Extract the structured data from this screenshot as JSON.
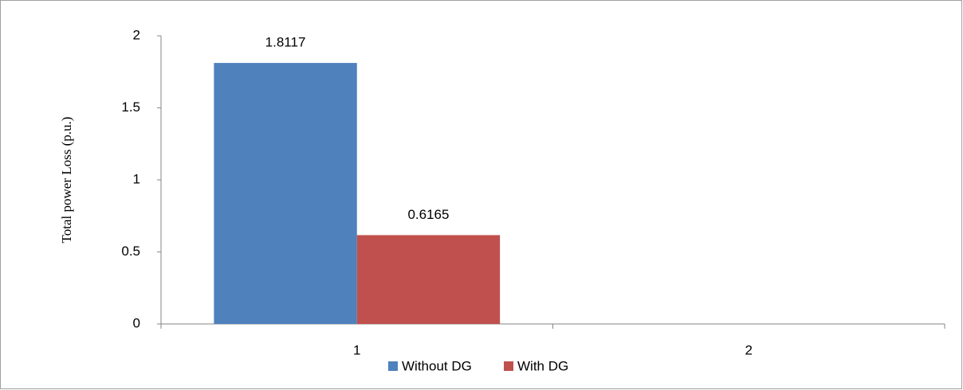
{
  "chart_data": {
    "type": "bar",
    "y_label": "Total power  Loss (p.u.)",
    "categories": [
      "1",
      "2"
    ],
    "series": [
      {
        "name": "Without DG",
        "color": "#4f81bd",
        "values": [
          1.8117,
          null
        ]
      },
      {
        "name": "With DG",
        "color": "#c0504d",
        "values": [
          0.6165,
          null
        ]
      }
    ],
    "ylim": [
      0,
      2
    ],
    "yticks": [
      0,
      0.5,
      1,
      1.5,
      2
    ],
    "legend": "bottom"
  }
}
